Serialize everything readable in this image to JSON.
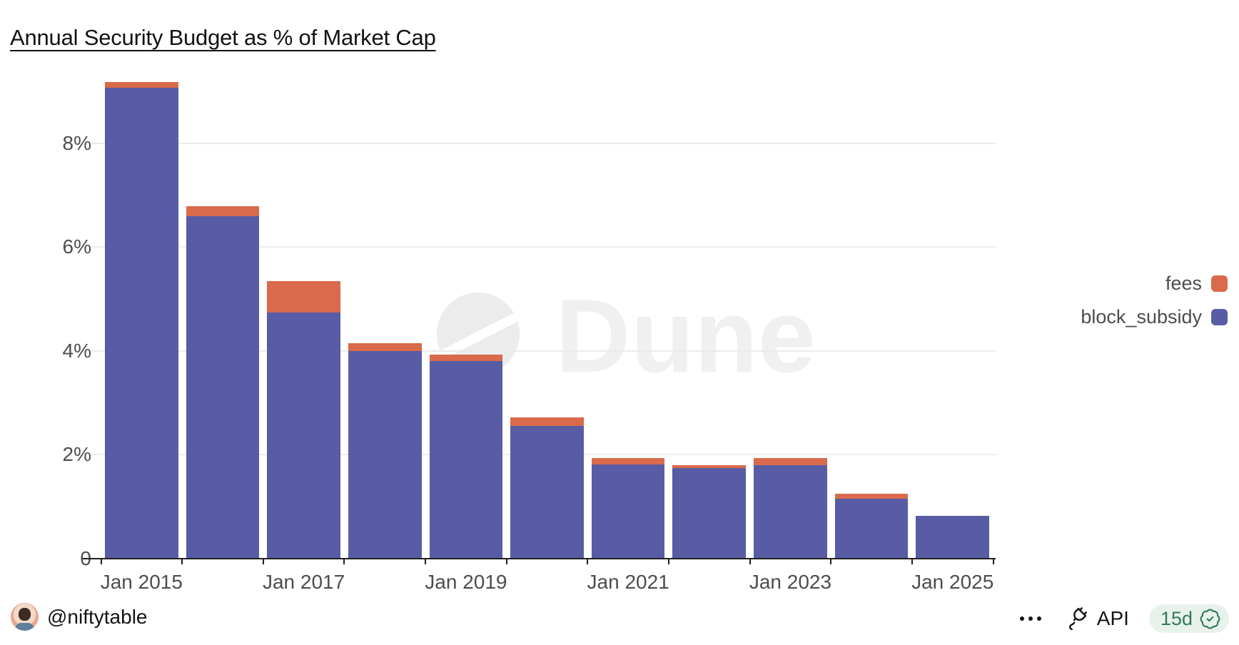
{
  "title": "Annual Security Budget as % of Market Cap",
  "chart_data": {
    "type": "bar",
    "stacked": true,
    "title": "Annual Security Budget as % of Market Cap",
    "categories": [
      "2015",
      "2016",
      "2017",
      "2018",
      "2019",
      "2020",
      "2021",
      "2022",
      "2023",
      "2024",
      "2025"
    ],
    "x_tick_labels": [
      "Jan 2015",
      "Jan 2017",
      "Jan 2019",
      "Jan 2021",
      "Jan 2023",
      "Jan 2025"
    ],
    "series": [
      {
        "name": "fees",
        "color": "#d96a4b",
        "values": [
          0.1,
          0.18,
          0.6,
          0.15,
          0.13,
          0.17,
          0.13,
          0.05,
          0.14,
          0.1,
          0
        ]
      },
      {
        "name": "block_subsidy",
        "color": "#585ca5",
        "values": [
          9.07,
          6.6,
          4.74,
          4.0,
          3.8,
          2.55,
          1.81,
          1.75,
          1.8,
          1.15,
          0.82
        ]
      }
    ],
    "xlabel": "",
    "ylabel": "",
    "y_ticks": [
      "0",
      "2%",
      "4%",
      "6%",
      "8%"
    ],
    "y_grid_percents": [
      0,
      2,
      4,
      6,
      8
    ],
    "ylim": [
      0,
      9.3
    ],
    "grid": true,
    "legend_position": "right"
  },
  "legend": {
    "items": [
      {
        "label": "fees",
        "color": "#d96a4b"
      },
      {
        "label": "block_subsidy",
        "color": "#585ca5"
      }
    ]
  },
  "watermark": {
    "text": "Dune"
  },
  "footer": {
    "handle": "@niftytable",
    "api_label": "API",
    "refresh_badge": "15d"
  },
  "colors": {
    "fees": "#d96a4b",
    "block_subsidy": "#585ca5",
    "gridline": "#ebebeb",
    "axis_text": "#4d4d4d",
    "badge_bg": "#e8f2ec",
    "badge_text": "#34785a"
  }
}
